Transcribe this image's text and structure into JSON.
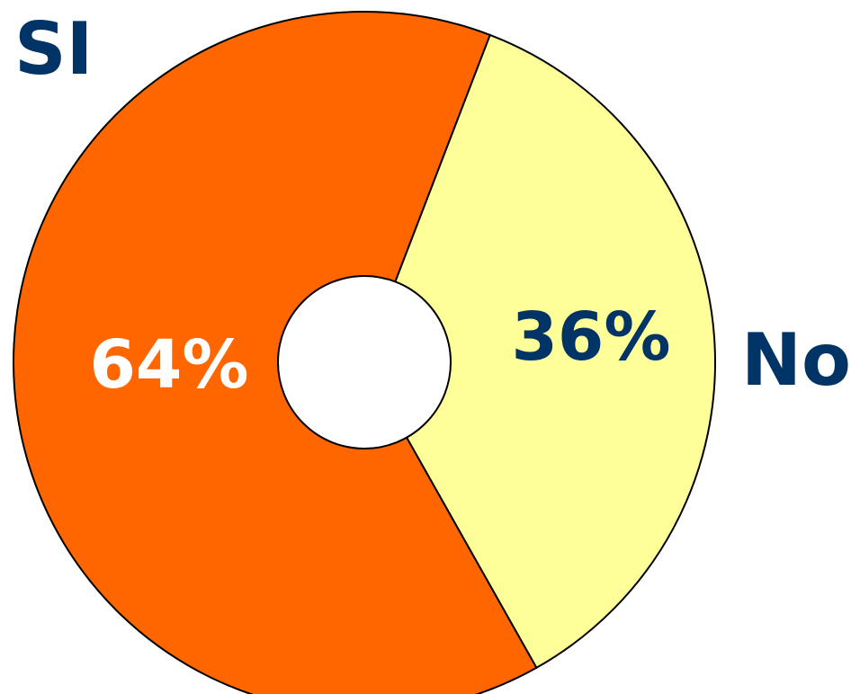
{
  "chart_data": {
    "type": "pie",
    "style": "donut",
    "slices": [
      {
        "label": "SI",
        "value": 64,
        "value_label": "64%",
        "color": "#ff6600",
        "value_label_color": "#ffffff",
        "label_color": "#003366"
      },
      {
        "label": "No",
        "value": 36,
        "value_label": "36%",
        "color": "#ffff99",
        "value_label_color": "#003366",
        "label_color": "#003366"
      }
    ],
    "outline_color": "#000000",
    "hole_color": "#ffffff",
    "legend": "none"
  }
}
